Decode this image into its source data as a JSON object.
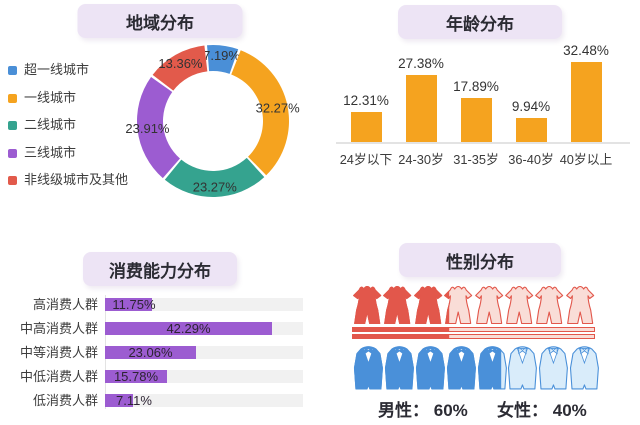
{
  "chart_data": [
    {
      "id": "region",
      "type": "pie",
      "variant": "donut",
      "title": "地域分布",
      "categories": [
        "超一线城市",
        "一线城市",
        "二线城市",
        "三线城市",
        "非线级城市及其他"
      ],
      "values": [
        7.19,
        32.27,
        23.27,
        23.91,
        13.36
      ],
      "colors": [
        "#4a8fd7",
        "#f5a31f",
        "#35a38f",
        "#9c5cd1",
        "#e25a4b"
      ],
      "value_suffix": "%",
      "legend_position": "left",
      "start_angle_deg": -5.5,
      "inner_radius_ratio": 0.66
    },
    {
      "id": "age",
      "type": "bar",
      "title": "年龄分布",
      "categories": [
        "24岁以下",
        "24-30岁",
        "31-35岁",
        "36-40岁",
        "40岁以上"
      ],
      "values": [
        12.31,
        27.38,
        17.89,
        9.94,
        32.48
      ],
      "bar_color": "#f5a31f",
      "value_suffix": "%",
      "ylim": [
        0,
        35
      ],
      "grid": false,
      "axis_color": "#e3e3e3"
    },
    {
      "id": "consumption",
      "type": "bar",
      "variant": "horizontal",
      "title": "消费能力分布",
      "categories": [
        "高消费人群",
        "中高消费人群",
        "中等消费人群",
        "中低消费人群",
        "低消费人群"
      ],
      "values": [
        11.75,
        42.29,
        23.06,
        15.78,
        7.11
      ],
      "bar_color": "#9c5cd1",
      "track_color": "#f1f1f1",
      "value_suffix": "%",
      "xlim": [
        0,
        50
      ]
    },
    {
      "id": "gender",
      "type": "pictogram",
      "title": "性别分布",
      "categories": [
        "男性",
        "女性"
      ],
      "values": [
        60,
        40
      ],
      "legend": [
        {
          "prefix": "男性：",
          "value": "60%"
        },
        {
          "prefix": "女性：",
          "value": "40%"
        }
      ],
      "rows": [
        {
          "icon": "dress-icon",
          "gender": "女性",
          "percent": 40,
          "color": "#e2574b",
          "light_fill": "#f9ddd7",
          "icon_count": 8,
          "stripe_bars": 2
        },
        {
          "icon": "suit-icon",
          "gender": "男性",
          "percent": 60,
          "color": "#4a90d9",
          "light_fill": "#d9ecfa",
          "icon_count": 8,
          "stripe_bars": 0
        }
      ]
    }
  ]
}
